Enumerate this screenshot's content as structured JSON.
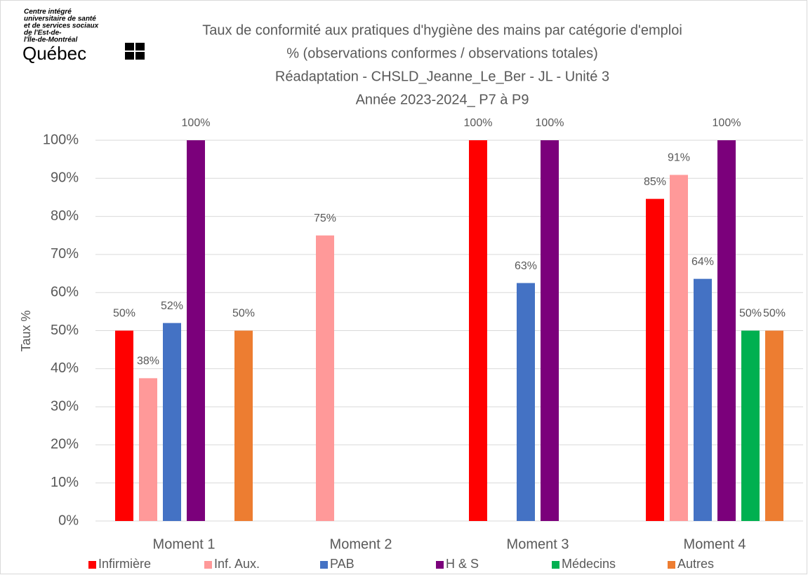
{
  "logo": {
    "lines": [
      "Centre intégré",
      "universitaire de santé",
      "et de services sociaux",
      "de l'Est-de-",
      "l'Île-de-Montréal"
    ],
    "brand": "Québec"
  },
  "chart_data": {
    "type": "bar",
    "title": [
      "Taux de conformité aux pratiques d'hygiène des mains par catégorie d'emploi",
      "% (observations conformes / observations totales)",
      "Réadaptation - CHSLD_Jeanne_Le_Ber - JL - Unité 3",
      "Année 2023-2024_ P7 à P9"
    ],
    "y_label": "Taux %",
    "categories": [
      "Moment 1",
      "Moment 2",
      "Moment 3",
      "Moment 4"
    ],
    "series": [
      {
        "name": "Infirmière",
        "color": "#ff0000",
        "values": [
          50,
          null,
          100,
          84.6
        ],
        "value_labels": [
          "50%",
          null,
          "100%",
          "85%"
        ]
      },
      {
        "name": "Inf. Aux.",
        "color": "#ff9999",
        "values": [
          37.5,
          75,
          null,
          90.9
        ],
        "value_labels": [
          "38%",
          "75%",
          null,
          "91%"
        ]
      },
      {
        "name": "PAB",
        "color": "#4472c4",
        "values": [
          52,
          null,
          62.5,
          63.6
        ],
        "value_labels": [
          "52%",
          null,
          "63%",
          "64%"
        ]
      },
      {
        "name": "H & S",
        "color": "#7b007b",
        "values": [
          100,
          null,
          100,
          100
        ],
        "value_labels": [
          "100%",
          null,
          "100%",
          "100%"
        ]
      },
      {
        "name": "Médecins",
        "color": "#00b050",
        "values": [
          null,
          null,
          null,
          50
        ],
        "value_labels": [
          null,
          null,
          null,
          "50%"
        ]
      },
      {
        "name": "Autres",
        "color": "#ed7d31",
        "values": [
          50,
          null,
          null,
          50
        ],
        "value_labels": [
          "50%",
          null,
          null,
          "50%"
        ]
      }
    ],
    "ylim": [
      0,
      100
    ],
    "yticks": [
      {
        "value": 0,
        "label": "0%"
      },
      {
        "value": 10,
        "label": "10%"
      },
      {
        "value": 20,
        "label": "20%"
      },
      {
        "value": 30,
        "label": "30%"
      },
      {
        "value": 40,
        "label": "40%"
      },
      {
        "value": 50,
        "label": "50%"
      },
      {
        "value": 60,
        "label": "60%"
      },
      {
        "value": 70,
        "label": "70%"
      },
      {
        "value": 80,
        "label": "80%"
      },
      {
        "value": 90,
        "label": "90%"
      },
      {
        "value": 100,
        "label": "100%"
      }
    ],
    "grid": true
  }
}
